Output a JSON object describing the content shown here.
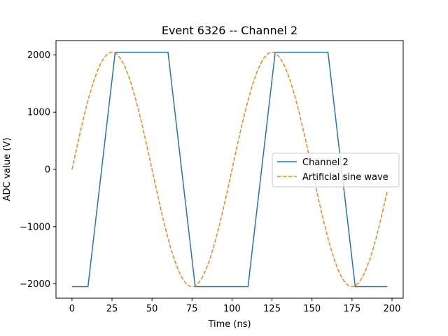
{
  "chart_data": {
    "type": "line",
    "title": "Event 6326 -- Channel 2",
    "xlabel": "Time (ns)",
    "ylabel": "ADC value (V)",
    "xlim": [
      -10,
      207
    ],
    "ylim": [
      -2250,
      2250
    ],
    "xticks": [
      0,
      25,
      50,
      75,
      100,
      125,
      150,
      175,
      200
    ],
    "xtick_labels": [
      "0",
      "25",
      "50",
      "75",
      "100",
      "125",
      "150",
      "175",
      "200"
    ],
    "yticks": [
      -2000,
      -1000,
      0,
      1000,
      2000
    ],
    "ytick_labels": [
      "−2000",
      "−1000",
      "0",
      "1000",
      "2000"
    ],
    "grid": false,
    "legend_position": "center-right",
    "series": [
      {
        "name": "Channel 2",
        "color": "#1f77b4",
        "style": "solid",
        "x": [
          0,
          10,
          27,
          60,
          77,
          110,
          127,
          160,
          177,
          197
        ],
        "y": [
          -2048,
          -2048,
          2047,
          2047,
          -2048,
          -2048,
          2047,
          2047,
          -2048,
          -2048
        ]
      },
      {
        "name": "Artificial sine wave",
        "color": "#ff7f0e",
        "style": "dashed",
        "function": "sine",
        "amplitude": 2047,
        "period": 100,
        "x_start": 0,
        "x_end": 197
      }
    ]
  }
}
